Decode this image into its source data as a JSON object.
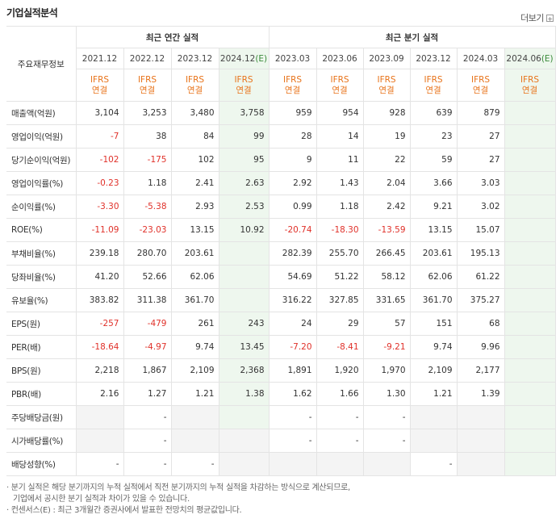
{
  "title": "기업실적분석",
  "more_label": "더보기",
  "more_icon": "plus-icon",
  "header": {
    "row_label": "주요재무정보",
    "annual_group": "최근 연간 실적",
    "quarter_group": "최근 분기 실적",
    "annual_periods": [
      "2021.12",
      "2022.12",
      "2023.12",
      "2024.12"
    ],
    "annual_est_mark": "(E)",
    "quarter_periods": [
      "2023.03",
      "2023.06",
      "2023.09",
      "2023.12",
      "2024.03",
      "2024.06"
    ],
    "quarter_est_mark": "(E)",
    "ifrs_label": "IFRS",
    "ifrs_sub": "연결"
  },
  "rows": [
    {
      "label": "매출액(억원)",
      "annual": [
        "3,104",
        "3,253",
        "3,480",
        "3,758"
      ],
      "quarter": [
        "959",
        "954",
        "928",
        "639",
        "879",
        ""
      ]
    },
    {
      "label": "영업이익(억원)",
      "annual": [
        "-7",
        "38",
        "84",
        "99"
      ],
      "quarter": [
        "28",
        "14",
        "19",
        "23",
        "27",
        ""
      ]
    },
    {
      "label": "당기순이익(억원)",
      "annual": [
        "-102",
        "-175",
        "102",
        "95"
      ],
      "quarter": [
        "9",
        "11",
        "22",
        "59",
        "27",
        ""
      ]
    },
    {
      "label": "영업이익률(%)",
      "annual": [
        "-0.23",
        "1.18",
        "2.41",
        "2.63"
      ],
      "quarter": [
        "2.92",
        "1.43",
        "2.04",
        "3.66",
        "3.03",
        ""
      ]
    },
    {
      "label": "순이익률(%)",
      "annual": [
        "-3.30",
        "-5.38",
        "2.93",
        "2.53"
      ],
      "quarter": [
        "0.99",
        "1.18",
        "2.42",
        "9.21",
        "3.02",
        ""
      ]
    },
    {
      "label": "ROE(%)",
      "annual": [
        "-11.09",
        "-23.03",
        "13.15",
        "10.92"
      ],
      "quarter": [
        "-20.74",
        "-18.30",
        "-13.59",
        "13.15",
        "15.07",
        ""
      ]
    },
    {
      "label": "부채비율(%)",
      "annual": [
        "239.18",
        "280.70",
        "203.61",
        ""
      ],
      "quarter": [
        "282.39",
        "255.70",
        "266.45",
        "203.61",
        "195.13",
        ""
      ]
    },
    {
      "label": "당좌비율(%)",
      "annual": [
        "41.20",
        "52.66",
        "62.06",
        ""
      ],
      "quarter": [
        "54.69",
        "51.22",
        "58.12",
        "62.06",
        "61.22",
        ""
      ]
    },
    {
      "label": "유보율(%)",
      "annual": [
        "383.82",
        "311.38",
        "361.70",
        ""
      ],
      "quarter": [
        "316.22",
        "327.85",
        "331.65",
        "361.70",
        "375.27",
        ""
      ]
    },
    {
      "label": "EPS(원)",
      "annual": [
        "-257",
        "-479",
        "261",
        "243"
      ],
      "quarter": [
        "24",
        "29",
        "57",
        "151",
        "68",
        ""
      ]
    },
    {
      "label": "PER(배)",
      "annual": [
        "-18.64",
        "-4.97",
        "9.74",
        "13.45"
      ],
      "quarter": [
        "-7.20",
        "-8.41",
        "-9.21",
        "9.74",
        "9.96",
        ""
      ]
    },
    {
      "label": "BPS(원)",
      "annual": [
        "2,218",
        "1,867",
        "2,109",
        "2,368"
      ],
      "quarter": [
        "1,891",
        "1,920",
        "1,970",
        "2,109",
        "2,177",
        ""
      ]
    },
    {
      "label": "PBR(배)",
      "annual": [
        "2.16",
        "1.27",
        "1.21",
        "1.38"
      ],
      "quarter": [
        "1.62",
        "1.66",
        "1.30",
        "1.21",
        "1.39",
        ""
      ]
    },
    {
      "label": "주당배당금(원)",
      "annual": [
        "",
        "-",
        "",
        ""
      ],
      "quarter": [
        "-",
        "-",
        "-",
        "",
        "",
        ""
      ],
      "gray": {
        "annual": [
          0,
          2
        ],
        "quarter": [
          3,
          4
        ]
      }
    },
    {
      "label": "시가배당률(%)",
      "annual": [
        "",
        "-",
        "",
        ""
      ],
      "quarter": [
        "-",
        "-",
        "-",
        "",
        "",
        ""
      ],
      "gray": {
        "annual": [
          0,
          2,
          3
        ],
        "quarter": [
          3,
          4
        ]
      }
    },
    {
      "label": "배당성향(%)",
      "annual": [
        "-",
        "-",
        "-",
        ""
      ],
      "quarter": [
        "",
        "",
        "",
        "-",
        "",
        ""
      ],
      "gray": {
        "annual": [
          3
        ],
        "quarter": [
          0,
          1,
          2,
          4
        ]
      }
    }
  ],
  "notes": [
    "· 분기 실적은 해당 분기까지의 누적 실적에서 직전 분기까지의 누적 실적을 차감하는 방식으로 계산되므로,",
    "  기업에서 공시한 분기 실적과 차이가 있을 수 있습니다.",
    "· 컨센서스(E) : 최근 3개월간 증권사에서 발표한 전망치의 평균값입니다."
  ]
}
